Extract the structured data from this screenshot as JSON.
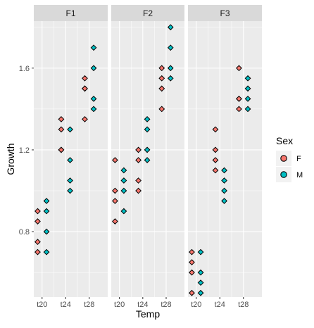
{
  "chart_data": {
    "type": "scatter",
    "facet_labels": [
      "F1",
      "F2",
      "F3"
    ],
    "xlabel": "Temp",
    "ylabel": "Growth",
    "x_categories": [
      "t20",
      "t24",
      "t28"
    ],
    "y_ticks": [
      0.8,
      1.2,
      1.6
    ],
    "ylim": [
      0.48,
      1.83
    ],
    "grid": true,
    "legend": {
      "title": "Sex",
      "position": "right",
      "entries": [
        "F",
        "M"
      ]
    },
    "colors": {
      "F": "#F8766D",
      "M": "#00BFC4",
      "panel": "#EBEBEB",
      "strip": "#D9D9D9",
      "grid": "#FFFFFF",
      "text": "#4D4D4D"
    },
    "facets": [
      {
        "name": "F1",
        "points": [
          {
            "sex": "F",
            "temp": "t20",
            "values": [
              0.9,
              0.85,
              0.75,
              0.7
            ]
          },
          {
            "sex": "M",
            "temp": "t20",
            "values": [
              0.95,
              0.9,
              0.8,
              0.7
            ]
          },
          {
            "sex": "F",
            "temp": "t24",
            "values": [
              1.35,
              1.3,
              1.2,
              1.2
            ]
          },
          {
            "sex": "M",
            "temp": "t24",
            "values": [
              1.3,
              1.15,
              1.05,
              1.0
            ]
          },
          {
            "sex": "F",
            "temp": "t28",
            "values": [
              1.55,
              1.5,
              1.5,
              1.35
            ]
          },
          {
            "sex": "M",
            "temp": "t28",
            "values": [
              1.7,
              1.6,
              1.45,
              1.4
            ]
          }
        ]
      },
      {
        "name": "F2",
        "points": [
          {
            "sex": "F",
            "temp": "t20",
            "values": [
              1.15,
              1.0,
              0.95,
              0.85
            ]
          },
          {
            "sex": "M",
            "temp": "t20",
            "values": [
              1.1,
              1.05,
              1.0,
              0.9
            ]
          },
          {
            "sex": "F",
            "temp": "t24",
            "values": [
              1.2,
              1.15,
              1.05,
              1.0
            ]
          },
          {
            "sex": "M",
            "temp": "t24",
            "values": [
              1.35,
              1.3,
              1.2,
              1.15
            ]
          },
          {
            "sex": "F",
            "temp": "t28",
            "values": [
              1.6,
              1.55,
              1.5,
              1.4
            ]
          },
          {
            "sex": "M",
            "temp": "t28",
            "values": [
              1.8,
              1.7,
              1.6,
              1.55
            ]
          }
        ]
      },
      {
        "name": "F3",
        "points": [
          {
            "sex": "F",
            "temp": "t20",
            "values": [
              0.7,
              0.65,
              0.6,
              0.5
            ]
          },
          {
            "sex": "M",
            "temp": "t20",
            "values": [
              0.7,
              0.6,
              0.55,
              0.5
            ]
          },
          {
            "sex": "F",
            "temp": "t24",
            "values": [
              1.3,
              1.2,
              1.15,
              1.1
            ]
          },
          {
            "sex": "M",
            "temp": "t24",
            "values": [
              1.1,
              1.05,
              1.0,
              0.95
            ]
          },
          {
            "sex": "F",
            "temp": "t28",
            "values": [
              1.6,
              1.45,
              1.45,
              1.4
            ]
          },
          {
            "sex": "M",
            "temp": "t28",
            "values": [
              1.55,
              1.5,
              1.45,
              1.4
            ]
          }
        ]
      }
    ]
  }
}
